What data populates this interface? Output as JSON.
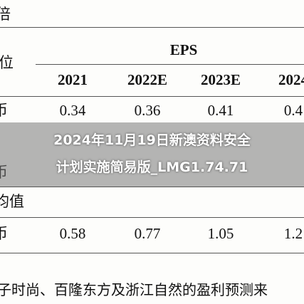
{
  "page": {
    "top_label": "倍",
    "unit_label": "位",
    "group_header": "EPS",
    "columns": [
      "2021",
      "2022E",
      "2023E",
      "2024"
    ],
    "row_a": {
      "label": "币",
      "cells": [
        "0.34",
        "0.36",
        "0.41",
        "0.4"
      ]
    },
    "row_b": {
      "label": "币"
    },
    "section_label": "均值",
    "row_c": {
      "label": "币",
      "cells": [
        "0.58",
        "0.77",
        "1.05",
        "1.2"
      ]
    },
    "overlay_title": [
      "2024年11月19日新澳资料安全",
      "计划实施简易版_LMG1.74.71"
    ],
    "footnote": "子时尚、百隆东方及浙江自然的盈利预测来"
  }
}
